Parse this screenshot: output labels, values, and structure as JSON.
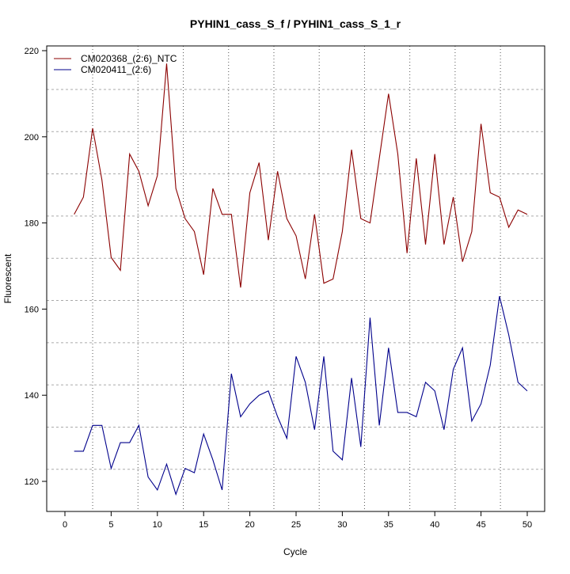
{
  "chart_data": {
    "type": "line",
    "title": "PYHIN1_cass_S_f / PYHIN1_cass_S_1_r",
    "xlabel": "Cycle",
    "ylabel": "Fluorescent",
    "xlim": [
      -2,
      52
    ],
    "ylim": [
      113,
      221
    ],
    "xticks": [
      0,
      5,
      10,
      15,
      20,
      25,
      30,
      35,
      40,
      45,
      50
    ],
    "yticks": [
      120,
      140,
      160,
      180,
      200,
      220
    ],
    "grid": true,
    "vgrid": [
      3,
      7.9,
      12.8,
      17.7,
      22.6,
      27.5,
      32.4,
      37.3,
      42.2,
      47.1
    ],
    "hgrid": [
      122.8,
      132.6,
      142.4,
      152.2,
      162,
      171.8,
      181.6,
      191.4,
      201.2,
      211
    ],
    "legend_position": "top-left",
    "x": [
      1,
      2,
      3,
      4,
      5,
      6,
      7,
      8,
      9,
      10,
      11,
      12,
      13,
      14,
      15,
      16,
      17,
      18,
      19,
      20,
      21,
      22,
      23,
      24,
      25,
      26,
      27,
      28,
      29,
      30,
      31,
      32,
      33,
      34,
      35,
      36,
      37,
      38,
      39,
      40,
      41,
      42,
      43,
      44,
      45,
      46,
      47,
      48,
      49,
      50
    ],
    "series": [
      {
        "name": "CM020368_(2:6)_NTC",
        "color": "#8b0000",
        "values": [
          182,
          186,
          202,
          190,
          172,
          169,
          196,
          192,
          184,
          191,
          217,
          188,
          181,
          178,
          168,
          188,
          182,
          182,
          165,
          187,
          194,
          176,
          192,
          181,
          177,
          167,
          182,
          166,
          167,
          178,
          197,
          181,
          180,
          195,
          210,
          196,
          173,
          195,
          175,
          196,
          175,
          186,
          171,
          178,
          203,
          187,
          186,
          179,
          183,
          182
        ]
      },
      {
        "name": "CM020411_(2:6)",
        "color": "#00008b",
        "values": [
          127,
          127,
          133,
          133,
          123,
          129,
          129,
          133,
          121,
          118,
          124,
          117,
          123,
          122,
          131,
          125,
          118,
          145,
          135,
          138,
          140,
          141,
          135,
          130,
          149,
          143,
          132,
          149,
          127,
          125,
          144,
          128,
          158,
          133,
          151,
          136,
          136,
          135,
          143,
          141,
          132,
          146,
          151,
          134,
          138,
          147,
          163,
          154,
          143,
          141
        ]
      }
    ]
  }
}
